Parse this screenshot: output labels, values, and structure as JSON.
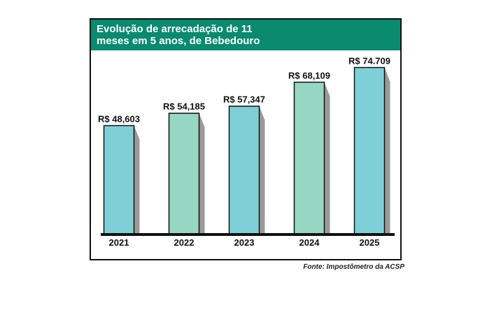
{
  "chart_data": {
    "type": "bar",
    "title_lines": [
      "Evolução de arrecadação de 11",
      "meses em 5 anos, de Bebedouro"
    ],
    "categories": [
      "2021",
      "2022",
      "2023",
      "2024",
      "2025"
    ],
    "values": [
      48.603,
      54.185,
      57.347,
      68.109,
      74.709
    ],
    "value_labels": [
      "R$ 48,603",
      "R$ 54,185",
      "R$ 57,347",
      "R$ 68,109",
      "R$ 74.709"
    ],
    "bar_colors": [
      "#7ed0d6",
      "#97d6c3",
      "#7ed0d6",
      "#97d6c3",
      "#7ed0d6"
    ],
    "header_color": "#0a8a6f",
    "shadow_color": "#9a9a9a",
    "ylim": [
      0,
      78
    ],
    "xlabel": "",
    "ylabel": ""
  },
  "source": "Fonte: Impostômetro da ACSP"
}
